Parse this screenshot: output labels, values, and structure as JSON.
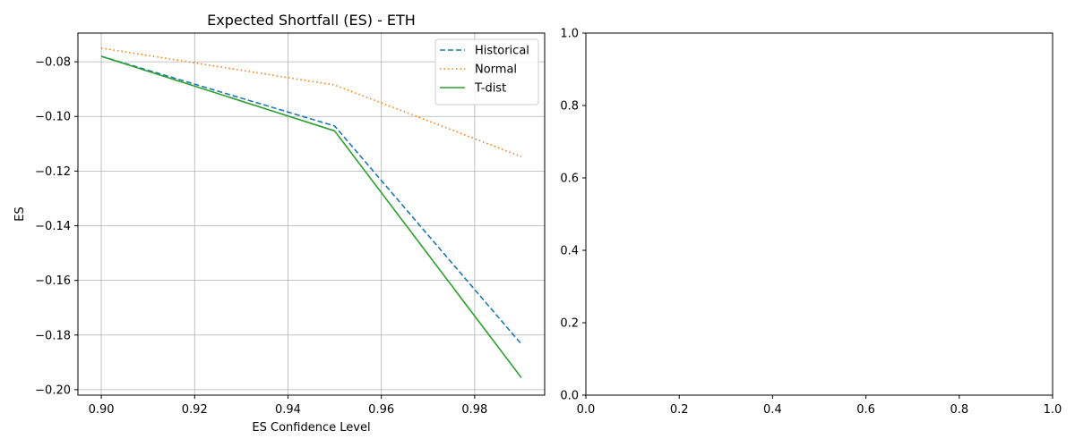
{
  "chart_data": [
    {
      "type": "line",
      "title": "Expected Shortfall (ES) - ETH",
      "xlabel": "ES Confidence Level",
      "ylabel": "ES",
      "x": [
        0.9,
        0.95,
        0.99
      ],
      "xlim": [
        0.895,
        0.995
      ],
      "ylim": [
        -0.202,
        -0.0695
      ],
      "xticks": [
        0.9,
        0.92,
        0.94,
        0.96,
        0.98
      ],
      "xtick_labels": [
        "0.90",
        "0.92",
        "0.94",
        "0.96",
        "0.98"
      ],
      "yticks": [
        -0.08,
        -0.1,
        -0.12,
        -0.14,
        -0.16,
        -0.18,
        -0.2
      ],
      "ytick_labels": [
        "−0.08",
        "−0.10",
        "−0.12",
        "−0.14",
        "−0.16",
        "−0.18",
        "−0.20"
      ],
      "grid": true,
      "legend": "top-right",
      "series": [
        {
          "name": "Historical",
          "values": [
            -0.078,
            -0.1035,
            -0.1833
          ],
          "color": "#1f77b4",
          "style": "dashed"
        },
        {
          "name": "Normal",
          "values": [
            -0.075,
            -0.0885,
            -0.1147
          ],
          "color": "#ff7f0e",
          "style": "dotted"
        },
        {
          "name": "T-dist",
          "values": [
            -0.078,
            -0.1053,
            -0.1956
          ],
          "color": "#2ca02c",
          "style": "solid"
        }
      ]
    },
    {
      "type": "line",
      "title": "",
      "xlabel": "",
      "ylabel": "",
      "xlim": [
        0.0,
        1.0
      ],
      "ylim": [
        0.0,
        1.0
      ],
      "xticks": [
        0.0,
        0.2,
        0.4,
        0.6,
        0.8,
        1.0
      ],
      "xtick_labels": [
        "0.0",
        "0.2",
        "0.4",
        "0.6",
        "0.8",
        "1.0"
      ],
      "yticks": [
        0.0,
        0.2,
        0.4,
        0.6,
        0.8,
        1.0
      ],
      "ytick_labels": [
        "0.0",
        "0.2",
        "0.4",
        "0.6",
        "0.8",
        "1.0"
      ],
      "grid": false,
      "series": []
    }
  ]
}
